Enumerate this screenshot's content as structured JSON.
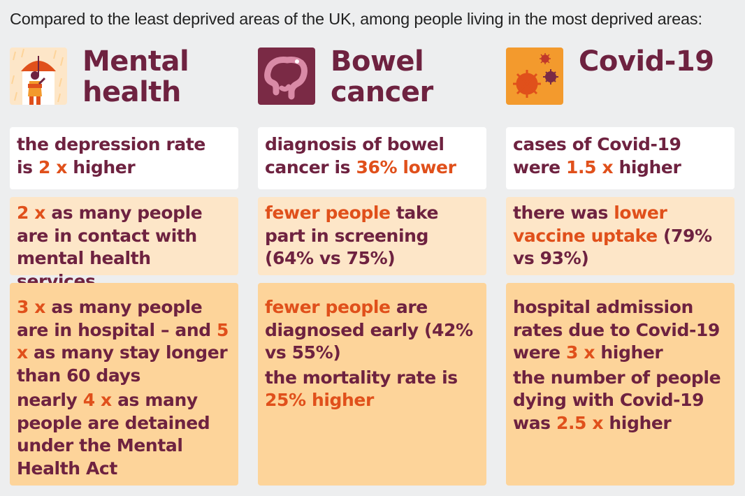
{
  "intro": "Compared to the least deprived areas of the UK, among people living in the most deprived areas:",
  "columns": [
    {
      "title_line1": "Mental",
      "title_line2": "health",
      "icon": "umbrella-person-icon",
      "card1": {
        "a": "the depression rate",
        "b": "is ",
        "c": "2 x",
        "d": " higher"
      },
      "card2": {
        "a": "2 x",
        "b": " as many people are in contact with mental health services"
      },
      "card3": {
        "p1a": "3 x",
        "p1b": " as many people are in hospital – and ",
        "p1c": "5 x",
        "p1d": " as many stay longer than 60 days",
        "p2a": "nearly ",
        "p2b": "4 x",
        "p2c": " as many people are detained under the Mental Health Act"
      }
    },
    {
      "title_line1": "Bowel",
      "title_line2": "cancer",
      "icon": "bowel-icon",
      "card1": {
        "a": "diagnosis of bowel",
        "b": "cancer is ",
        "c": "36% lower"
      },
      "card2": {
        "a": "fewer people",
        "b": " take part in screening (64% vs 75%)"
      },
      "card3": {
        "p1a": "fewer people",
        "p1b": " are diagnosed early (42% vs 55%)",
        "p2a": "the mortality rate is ",
        "p2b": "25% higher"
      }
    },
    {
      "title_line1": "Covid-19",
      "title_line2": "",
      "icon": "virus-icon",
      "card1": {
        "a": "cases of Covid-19",
        "b": "were ",
        "c": "1.5 x",
        "d": " higher"
      },
      "card2": {
        "a": "there was ",
        "b": "lower vaccine uptake",
        "c": " (79% vs 93%)"
      },
      "card3": {
        "p1a": "hospital admission rates due to Covid-19 were ",
        "p1b": "3 x",
        "p1c": " higher",
        "p2a": "the number of people dying with Covid-19 was ",
        "p2b": "2.5 x",
        "p2c": " higher"
      }
    }
  ],
  "colors": {
    "text": "#6e2240",
    "highlight": "#e0501b",
    "background": "#edeeef",
    "card_white": "#ffffff",
    "card_light": "#fde6c8",
    "card_mid": "#fdd49a"
  }
}
